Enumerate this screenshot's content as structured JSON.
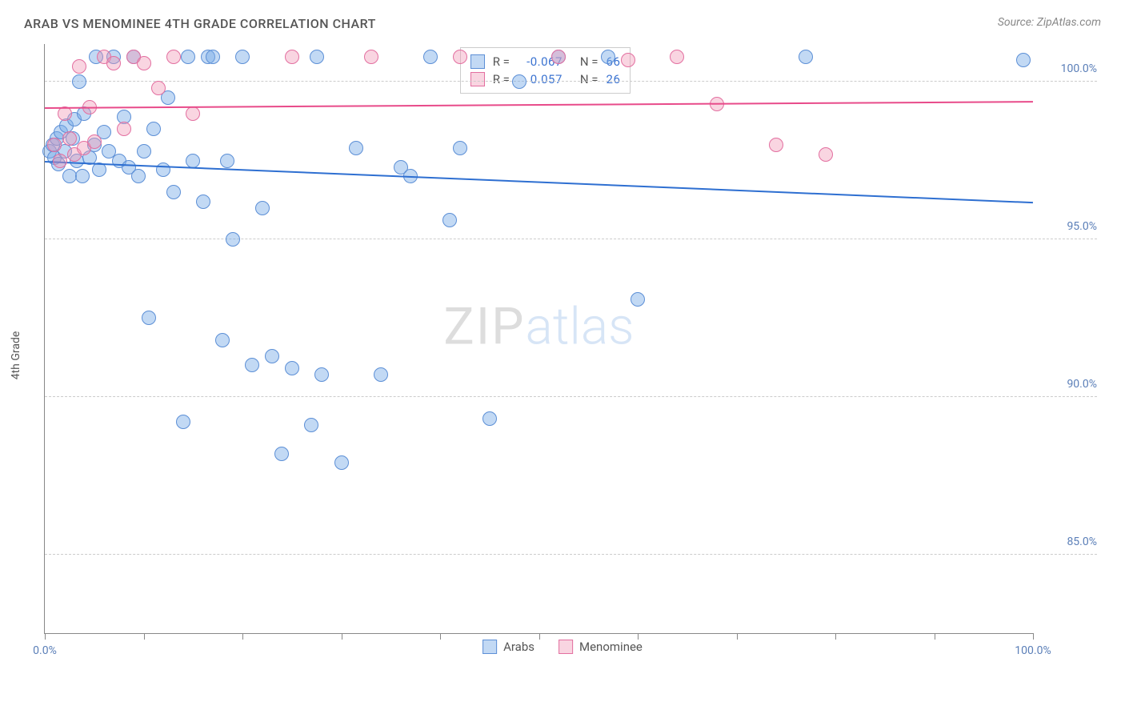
{
  "title": "ARAB VS MENOMINEE 4TH GRADE CORRELATION CHART",
  "source": "Source: ZipAtlas.com",
  "ylabel": "4th Grade",
  "watermark": {
    "part1": "ZIP",
    "part2": "atlas"
  },
  "chart": {
    "type": "scatter",
    "xlim": [
      0,
      100
    ],
    "ylim": [
      82.5,
      101.2
    ],
    "x_tick_positions": [
      0,
      10,
      20,
      30,
      40,
      50,
      60,
      70,
      80,
      90,
      100
    ],
    "x_tick_labels_shown": {
      "0": "0.0%",
      "100": "100.0%"
    },
    "y_ticks": [
      {
        "v": 85.0,
        "label": "85.0%"
      },
      {
        "v": 90.0,
        "label": "90.0%"
      },
      {
        "v": 95.0,
        "label": "95.0%"
      },
      {
        "v": 100.0,
        "label": "100.0%"
      }
    ],
    "y_tick_color": "#5b7fb8",
    "x_tick_color": "#5b7fb8",
    "grid_color": "#cccccc",
    "background_color": "#ffffff",
    "axis_color": "#888888",
    "series": [
      {
        "name": "Arabs",
        "fill": "rgba(120,170,230,0.45)",
        "stroke": "#5c8fd6",
        "trend_color": "#2e6fd1",
        "marker_radius": 9,
        "trend": {
          "y_at_x0": 97.5,
          "y_at_x100": 96.2
        },
        "R": "-0.067",
        "N": "66",
        "points": [
          [
            0.5,
            97.8
          ],
          [
            0.8,
            98.0
          ],
          [
            1.0,
            97.6
          ],
          [
            1.2,
            98.2
          ],
          [
            1.4,
            97.4
          ],
          [
            1.6,
            98.4
          ],
          [
            2.0,
            97.8
          ],
          [
            2.2,
            98.6
          ],
          [
            2.5,
            97.0
          ],
          [
            2.8,
            98.2
          ],
          [
            3.0,
            98.8
          ],
          [
            3.2,
            97.5
          ],
          [
            3.5,
            100.0
          ],
          [
            3.8,
            97.0
          ],
          [
            4.0,
            99.0
          ],
          [
            4.5,
            97.6
          ],
          [
            5.0,
            98.0
          ],
          [
            5.2,
            100.8
          ],
          [
            5.5,
            97.2
          ],
          [
            6.0,
            98.4
          ],
          [
            6.5,
            97.8
          ],
          [
            7.0,
            100.8
          ],
          [
            7.5,
            97.5
          ],
          [
            8.0,
            98.9
          ],
          [
            8.5,
            97.3
          ],
          [
            9.0,
            100.8
          ],
          [
            9.5,
            97.0
          ],
          [
            10.0,
            97.8
          ],
          [
            10.5,
            92.5
          ],
          [
            11.0,
            98.5
          ],
          [
            12.0,
            97.2
          ],
          [
            12.5,
            99.5
          ],
          [
            13.0,
            96.5
          ],
          [
            14.0,
            89.2
          ],
          [
            14.5,
            100.8
          ],
          [
            15.0,
            97.5
          ],
          [
            16.0,
            96.2
          ],
          [
            16.5,
            100.8
          ],
          [
            17.0,
            100.8
          ],
          [
            18.0,
            91.8
          ],
          [
            18.5,
            97.5
          ],
          [
            19.0,
            95.0
          ],
          [
            20.0,
            100.8
          ],
          [
            21.0,
            91.0
          ],
          [
            22.0,
            96.0
          ],
          [
            23.0,
            91.3
          ],
          [
            24.0,
            88.2
          ],
          [
            25.0,
            90.9
          ],
          [
            27.0,
            89.1
          ],
          [
            27.5,
            100.8
          ],
          [
            28.0,
            90.7
          ],
          [
            30.0,
            87.9
          ],
          [
            31.5,
            97.9
          ],
          [
            34.0,
            90.7
          ],
          [
            36.0,
            97.3
          ],
          [
            37.0,
            97.0
          ],
          [
            39.0,
            100.8
          ],
          [
            41.0,
            95.6
          ],
          [
            42.0,
            97.9
          ],
          [
            45.0,
            89.3
          ],
          [
            48.0,
            100.0
          ],
          [
            52.0,
            100.8
          ],
          [
            57.0,
            100.8
          ],
          [
            60.0,
            93.1
          ],
          [
            77.0,
            100.8
          ],
          [
            99.0,
            100.7
          ]
        ]
      },
      {
        "name": "Menominee",
        "fill": "rgba(240,150,180,0.40)",
        "stroke": "#e36fa0",
        "trend_color": "#e84b8a",
        "marker_radius": 9,
        "trend": {
          "y_at_x0": 99.2,
          "y_at_x100": 99.4
        },
        "R": "0.057",
        "N": "26",
        "points": [
          [
            1.0,
            98.0
          ],
          [
            1.5,
            97.5
          ],
          [
            2.0,
            99.0
          ],
          [
            2.5,
            98.2
          ],
          [
            3.0,
            97.7
          ],
          [
            3.5,
            100.5
          ],
          [
            4.0,
            97.9
          ],
          [
            4.5,
            99.2
          ],
          [
            5.0,
            98.1
          ],
          [
            6.0,
            100.8
          ],
          [
            7.0,
            100.6
          ],
          [
            8.0,
            98.5
          ],
          [
            9.0,
            100.8
          ],
          [
            10.0,
            100.6
          ],
          [
            11.5,
            99.8
          ],
          [
            13.0,
            100.8
          ],
          [
            15.0,
            99.0
          ],
          [
            25.0,
            100.8
          ],
          [
            33.0,
            100.8
          ],
          [
            42.0,
            100.8
          ],
          [
            52.0,
            100.8
          ],
          [
            59.0,
            100.7
          ],
          [
            64.0,
            100.8
          ],
          [
            68.0,
            99.3
          ],
          [
            74.0,
            98.0
          ],
          [
            79.0,
            97.7
          ]
        ]
      }
    ]
  },
  "legend_top": {
    "rows": [
      {
        "swatch_fill": "rgba(120,170,230,0.45)",
        "swatch_stroke": "#5c8fd6",
        "r_label": "R =",
        "r_val": "-0.067",
        "n_label": "N =",
        "n_val": "66",
        "val_color": "#3b73d1"
      },
      {
        "swatch_fill": "rgba(240,150,180,0.40)",
        "swatch_stroke": "#e36fa0",
        "r_label": "R =",
        "r_val": " 0.057",
        "n_label": "N =",
        "n_val": "26",
        "val_color": "#3b73d1"
      }
    ]
  },
  "legend_bottom": [
    {
      "swatch_fill": "rgba(120,170,230,0.45)",
      "swatch_stroke": "#5c8fd6",
      "label": "Arabs"
    },
    {
      "swatch_fill": "rgba(240,150,180,0.40)",
      "swatch_stroke": "#e36fa0",
      "label": "Menominee"
    }
  ]
}
